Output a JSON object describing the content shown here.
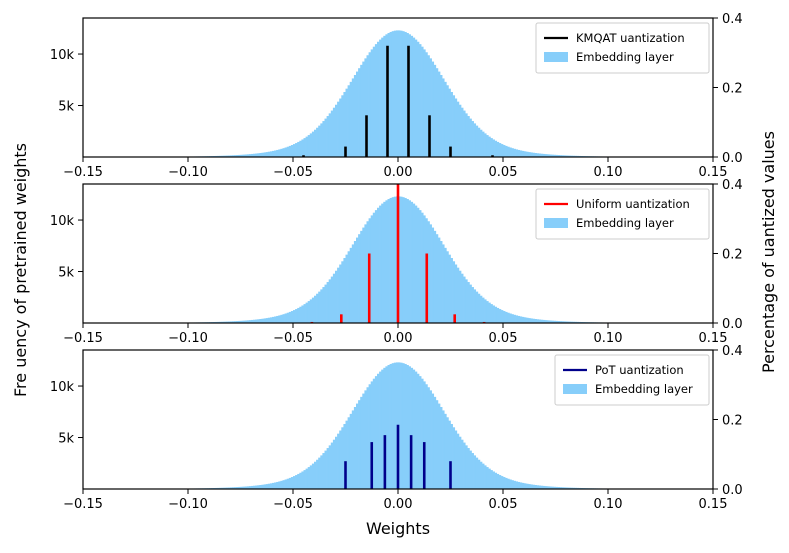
{
  "chart_data": {
    "type": "bar",
    "xlabel": "Weights",
    "ylabel_left": "Fre  uency of pretrained weights",
    "ylabel_right": "Percentage of   uantized values",
    "xlim": [
      -0.15,
      0.15
    ],
    "xticks": [
      -0.15,
      -0.1,
      -0.05,
      0.0,
      0.05,
      0.1,
      0.15
    ],
    "xtick_labels": [
      "−0.15",
      "−0.10",
      "−0.05",
      "0.00",
      "0.05",
      "0.10",
      "0.15"
    ],
    "left_yticks": [
      5000,
      10000
    ],
    "left_ytick_labels": [
      "5k",
      "10k"
    ],
    "right_yticks": [
      0.0,
      0.2,
      0.4
    ],
    "right_ytick_labels": [
      "0.0",
      "0.2",
      "0.4"
    ],
    "panels": [
      {
        "legend": [
          "KMQAT   uantization",
          "Embedding layer"
        ],
        "histogram": {
          "name": "Embedding layer",
          "color": "#87cefa",
          "peak": 12300,
          "sigma_core": 0.021,
          "tail_sigma": 0.038,
          "ylim": [
            0,
            13500
          ]
        },
        "quantization": {
          "name": "KMQAT   uantization",
          "color": "#000000",
          "ylim": [
            0,
            0.4
          ],
          "x": [
            -0.045,
            -0.025,
            -0.015,
            -0.005,
            0.005,
            0.015,
            0.025,
            0.045
          ],
          "values": [
            0.005,
            0.03,
            0.12,
            0.32,
            0.32,
            0.12,
            0.03,
            0.005
          ]
        }
      },
      {
        "legend": [
          "Uniform   uantization",
          "Embedding layer"
        ],
        "histogram": {
          "name": "Embedding layer",
          "color": "#87cefa",
          "peak": 12300,
          "sigma_core": 0.021,
          "tail_sigma": 0.038,
          "ylim": [
            0,
            13500
          ]
        },
        "quantization": {
          "name": "Uniform   uantization",
          "color": "#ff0000",
          "ylim": [
            0,
            0.4
          ],
          "x": [
            -0.041,
            -0.027,
            -0.0137,
            0.0,
            0.0137,
            0.027,
            0.041
          ],
          "values": [
            0.003,
            0.025,
            0.2,
            0.4,
            0.2,
            0.025,
            0.003
          ]
        }
      },
      {
        "legend": [
          "PoT   uantization",
          "Embedding layer"
        ],
        "histogram": {
          "name": "Embedding layer",
          "color": "#87cefa",
          "peak": 12300,
          "sigma_core": 0.021,
          "tail_sigma": 0.038,
          "ylim": [
            0,
            13500
          ]
        },
        "quantization": {
          "name": "PoT   uantization",
          "color": "#00008b",
          "ylim": [
            0,
            0.4
          ],
          "x": [
            -0.025,
            -0.0125,
            -0.00625,
            0.0,
            0.00625,
            0.0125,
            0.025
          ],
          "values": [
            0.08,
            0.135,
            0.155,
            0.185,
            0.155,
            0.135,
            0.08
          ]
        }
      }
    ]
  }
}
